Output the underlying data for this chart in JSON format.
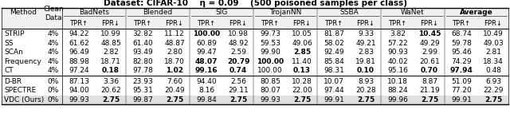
{
  "title": "Dataset: CIFAR-10    η = 0.09    (500 poisoned samples per class)",
  "col_groups": [
    "BadNets",
    "Blended",
    "SIG",
    "TrojanNN",
    "SSBA",
    "WaNet",
    "Average"
  ],
  "rows_group1": [
    [
      "STRIP",
      "4%",
      "94.22",
      "10.99",
      "32.82",
      "11.12",
      "100.00",
      "10.98",
      "99.73",
      "10.05",
      "81.87",
      "9.33",
      "3.82",
      "10.45",
      "68.74",
      "10.49"
    ],
    [
      "SS",
      "4%",
      "61.62",
      "48.85",
      "61.40",
      "48.87",
      "60.89",
      "48.92",
      "59.53",
      "49.06",
      "58.02",
      "49.21",
      "57.22",
      "49.29",
      "59.78",
      "49.03"
    ],
    [
      "SCAn",
      "4%",
      "96.49",
      "2.82",
      "93.49",
      "2.80",
      "99.47",
      "2.59",
      "99.90",
      "2.85",
      "92.49",
      "2.83",
      "90.93",
      "2.99",
      "95.46",
      "2.81"
    ],
    [
      "Frequency",
      "4%",
      "88.98",
      "18.71",
      "82.80",
      "18.70",
      "48.07",
      "20.79",
      "100.00",
      "11.40",
      "85.84",
      "19.81",
      "40.02",
      "20.61",
      "74.29",
      "18.34"
    ],
    [
      "CT",
      "4%",
      "97.24",
      "0.18",
      "97.78",
      "1.02",
      "99.16",
      "0.74",
      "100.00",
      "0.13",
      "98.31",
      "0.10",
      "95.16",
      "0.70",
      "97.94",
      "0.48"
    ]
  ],
  "rows_group2": [
    [
      "D-BR",
      "0%",
      "87.13",
      "3.36",
      "23.93",
      "7.60",
      "94.40",
      "2.56",
      "80.85",
      "10.28",
      "10.07",
      "8.93",
      "10.18",
      "8.87",
      "51.09",
      "6.93"
    ],
    [
      "SPECTRE",
      "0%",
      "94.00",
      "20.62",
      "95.31",
      "20.49",
      "8.16",
      "29.11",
      "80.07",
      "22.00",
      "97.44",
      "20.28",
      "88.24",
      "21.19",
      "77.20",
      "22.29"
    ],
    [
      "VDC (Ours)",
      "0%",
      "99.93",
      "2.75",
      "99.87",
      "2.75",
      "99.84",
      "2.75",
      "99.93",
      "2.75",
      "99.91",
      "2.75",
      "99.96",
      "2.75",
      "99.91",
      "2.75"
    ]
  ],
  "bold_g1": {
    "0": [
      6,
      13
    ],
    "2": [
      9
    ],
    "3": [
      6,
      7,
      8
    ],
    "4": [
      3,
      5,
      6,
      7,
      9,
      11,
      13,
      14
    ]
  },
  "bold_g2": {
    "2": [
      3,
      5,
      7,
      9,
      11,
      13,
      15
    ]
  },
  "bg_vdc": "#e0e0e0",
  "fs": 6.5
}
